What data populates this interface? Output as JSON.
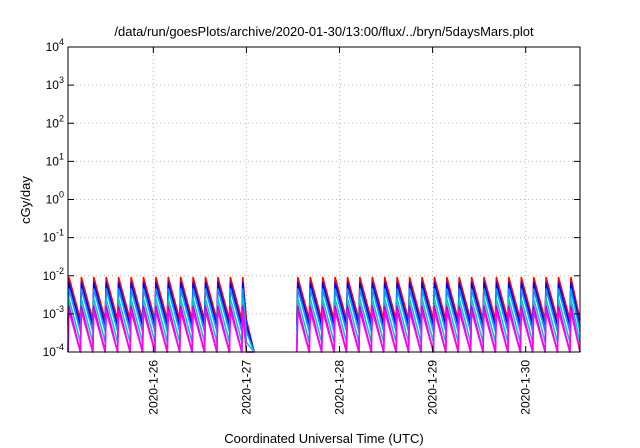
{
  "chart_data": {
    "type": "line",
    "title": "/data/run/goesPlots/archive/2020-01-30/13:00/flux/../bryn/5daysMars.plot",
    "xlabel": "Coordinated Universal Time (UTC)",
    "ylabel": "cGy/day",
    "yscale": "log",
    "ylim": [
      0.0001,
      10000
    ],
    "xlim": [
      "2020-01-25 02:00",
      "2020-01-30 14:00"
    ],
    "grid": true,
    "x_ticks": [
      "2020-1-26",
      "2020-1-27",
      "2020-1-28",
      "2020-1-29",
      "2020-1-30"
    ],
    "x_tick_values": [
      "2020-01-26 00:00",
      "2020-01-27 00:00",
      "2020-01-28 00:00",
      "2020-01-29 00:00",
      "2020-01-30 00:00"
    ],
    "y_ticks": [
      {
        "base": "10",
        "exp": "-4"
      },
      {
        "base": "10",
        "exp": "-3"
      },
      {
        "base": "10",
        "exp": "-2"
      },
      {
        "base": "10",
        "exp": "-1"
      },
      {
        "base": "10",
        "exp": "0"
      },
      {
        "base": "10",
        "exp": "1"
      },
      {
        "base": "10",
        "exp": "2"
      },
      {
        "base": "10",
        "exp": "3"
      },
      {
        "base": "10",
        "exp": "4"
      }
    ],
    "pattern": {
      "note": "sawtooth data repeating every cycle_hours: sharp rise to peak then decay to trough",
      "cycle_hours": 3.2,
      "data_gap": [
        "2020-01-27 00:00",
        "2020-01-27 13:00"
      ]
    },
    "series": [
      {
        "color": "#ff0000",
        "peak": 0.009,
        "trough": 0.0007
      },
      {
        "color": "#0000ff",
        "peak": 0.0065,
        "trough": 0.0005
      },
      {
        "color": "#0099ff",
        "peak": 0.0045,
        "trough": 0.00035
      },
      {
        "color": "#00cccc",
        "peak": 0.0025,
        "trough": 0.00018
      },
      {
        "color": "#cc00cc",
        "peak": 0.0016,
        "trough": 0.0001
      },
      {
        "color": "#ff00ff",
        "peak": 0.0012,
        "trough": 0.0001
      }
    ]
  }
}
